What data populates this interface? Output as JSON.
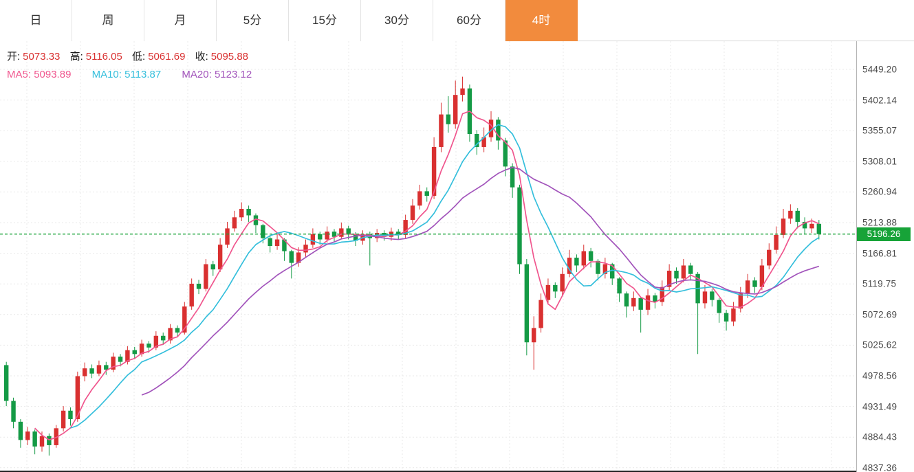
{
  "tabs": {
    "accent_color": "#f28b3d",
    "items": [
      {
        "label": "日",
        "active": false
      },
      {
        "label": "周",
        "active": false
      },
      {
        "label": "月",
        "active": false
      },
      {
        "label": "5分",
        "active": false
      },
      {
        "label": "15分",
        "active": false
      },
      {
        "label": "30分",
        "active": false
      },
      {
        "label": "60分",
        "active": false
      },
      {
        "label": "4时",
        "active": true
      }
    ]
  },
  "legend": {
    "open_label": "开:",
    "open_value": "5073.33",
    "high_label": "高:",
    "high_value": "5116.05",
    "low_label": "低:",
    "low_value": "5061.69",
    "close_label": "收:",
    "close_value": "5095.88",
    "ma5_label": "MA5:",
    "ma5_value": "5093.89",
    "ma10_label": "MA10:",
    "ma10_value": "5113.87",
    "ma20_label": "MA20:",
    "ma20_value": "5123.12"
  },
  "colors": {
    "up": "#d93030",
    "down": "#149a45",
    "ma5": "#f0568e",
    "ma10": "#35bfdc",
    "ma20": "#a254bb",
    "price_line": "#17a338",
    "grid": "#e9e9e9",
    "bottom_border": "#222222"
  },
  "chart_data": {
    "type": "candlestick",
    "title": "4时 K线 (4-hour candlestick chart)",
    "current_price": 5196.26,
    "current_price_label": "5196.26",
    "legend_position": "top-left",
    "grid": true,
    "y_axis": {
      "top_value": 5449.2,
      "step": 47.065,
      "labels": [
        "5449.20",
        "5402.14",
        "5355.07",
        "5308.01",
        "5260.94",
        "5213.88",
        "5166.81",
        "5119.75",
        "5072.69",
        "5025.62",
        "4978.56",
        "4931.49",
        "4884.43",
        "4837.36"
      ]
    },
    "series_note": "candles are [open, high, low, close]; up candles red, down candles green (CN convention); MA5/MA10/MA20 computed from closes",
    "candles": [
      [
        4995,
        5000,
        4932,
        4940
      ],
      [
        4940,
        4945,
        4898,
        4908
      ],
      [
        4908,
        4912,
        4868,
        4880
      ],
      [
        4880,
        4900,
        4872,
        4893
      ],
      [
        4893,
        4896,
        4858,
        4870
      ],
      [
        4870,
        4893,
        4862,
        4886
      ],
      [
        4886,
        4890,
        4856,
        4872
      ],
      [
        4872,
        4903,
        4868,
        4898
      ],
      [
        4898,
        4932,
        4893,
        4925
      ],
      [
        4925,
        4930,
        4902,
        4912
      ],
      [
        4912,
        4985,
        4908,
        4978
      ],
      [
        4978,
        4999,
        4970,
        4990
      ],
      [
        4990,
        4996,
        4975,
        4982
      ],
      [
        4982,
        5002,
        4978,
        4995
      ],
      [
        4995,
        5000,
        4980,
        4988
      ],
      [
        4988,
        5014,
        4984,
        5008
      ],
      [
        5008,
        5012,
        4993,
        5000
      ],
      [
        5000,
        5024,
        4996,
        5018
      ],
      [
        5018,
        5023,
        5004,
        5012
      ],
      [
        5012,
        5034,
        5008,
        5028
      ],
      [
        5028,
        5032,
        5014,
        5022
      ],
      [
        5022,
        5047,
        5018,
        5040
      ],
      [
        5040,
        5045,
        5026,
        5033
      ],
      [
        5033,
        5058,
        5028,
        5052
      ],
      [
        5052,
        5056,
        5038,
        5045
      ],
      [
        5045,
        5092,
        5042,
        5085
      ],
      [
        5085,
        5128,
        5080,
        5120
      ],
      [
        5120,
        5126,
        5104,
        5112
      ],
      [
        5112,
        5158,
        5108,
        5150
      ],
      [
        5150,
        5155,
        5132,
        5142
      ],
      [
        5142,
        5190,
        5138,
        5180
      ],
      [
        5180,
        5215,
        5175,
        5205
      ],
      [
        5205,
        5232,
        5200,
        5222
      ],
      [
        5222,
        5245,
        5216,
        5235
      ],
      [
        5235,
        5240,
        5215,
        5225
      ],
      [
        5225,
        5228,
        5198,
        5210
      ],
      [
        5210,
        5212,
        5182,
        5190
      ],
      [
        5190,
        5195,
        5168,
        5178
      ],
      [
        5178,
        5196,
        5172,
        5188
      ],
      [
        5188,
        5190,
        5155,
        5170
      ],
      [
        5170,
        5172,
        5128,
        5152
      ],
      [
        5152,
        5176,
        5146,
        5168
      ],
      [
        5168,
        5188,
        5160,
        5180
      ],
      [
        5180,
        5205,
        5175,
        5196
      ],
      [
        5196,
        5200,
        5180,
        5188
      ],
      [
        5188,
        5208,
        5183,
        5200
      ],
      [
        5200,
        5204,
        5184,
        5192
      ],
      [
        5192,
        5214,
        5188,
        5205
      ],
      [
        5205,
        5209,
        5188,
        5196
      ],
      [
        5196,
        5199,
        5178,
        5186
      ],
      [
        5186,
        5202,
        5180,
        5196
      ],
      [
        5196,
        5200,
        5148,
        5190
      ],
      [
        5190,
        5204,
        5184,
        5198
      ],
      [
        5198,
        5202,
        5186,
        5192
      ],
      [
        5192,
        5206,
        5186,
        5200
      ],
      [
        5200,
        5204,
        5188,
        5195
      ],
      [
        5195,
        5226,
        5190,
        5218
      ],
      [
        5218,
        5250,
        5212,
        5240
      ],
      [
        5240,
        5272,
        5234,
        5262
      ],
      [
        5262,
        5268,
        5246,
        5255
      ],
      [
        5255,
        5345,
        5250,
        5330
      ],
      [
        5330,
        5398,
        5322,
        5380
      ],
      [
        5380,
        5408,
        5352,
        5365
      ],
      [
        5365,
        5432,
        5358,
        5410
      ],
      [
        5410,
        5438,
        5400,
        5420
      ],
      [
        5420,
        5426,
        5338,
        5350
      ],
      [
        5350,
        5356,
        5318,
        5330
      ],
      [
        5330,
        5360,
        5322,
        5345
      ],
      [
        5345,
        5385,
        5338,
        5372
      ],
      [
        5372,
        5376,
        5326,
        5340
      ],
      [
        5340,
        5344,
        5285,
        5300
      ],
      [
        5300,
        5305,
        5252,
        5268
      ],
      [
        5268,
        5272,
        5135,
        5150
      ],
      [
        5150,
        5158,
        5010,
        5030
      ],
      [
        5030,
        5070,
        4988,
        5052
      ],
      [
        5052,
        5105,
        5045,
        5095
      ],
      [
        5095,
        5128,
        5088,
        5118
      ],
      [
        5118,
        5122,
        5098,
        5108
      ],
      [
        5108,
        5145,
        5102,
        5135
      ],
      [
        5135,
        5172,
        5130,
        5160
      ],
      [
        5160,
        5165,
        5138,
        5148
      ],
      [
        5148,
        5180,
        5142,
        5170
      ],
      [
        5170,
        5175,
        5145,
        5155
      ],
      [
        5155,
        5158,
        5125,
        5135
      ],
      [
        5135,
        5160,
        5128,
        5150
      ],
      [
        5150,
        5152,
        5118,
        5128
      ],
      [
        5128,
        5130,
        5092,
        5105
      ],
      [
        5105,
        5108,
        5068,
        5085
      ],
      [
        5085,
        5108,
        5078,
        5098
      ],
      [
        5098,
        5100,
        5045,
        5080
      ],
      [
        5080,
        5112,
        5072,
        5102
      ],
      [
        5102,
        5106,
        5082,
        5092
      ],
      [
        5092,
        5125,
        5086,
        5115
      ],
      [
        5115,
        5150,
        5110,
        5140
      ],
      [
        5140,
        5145,
        5120,
        5128
      ],
      [
        5128,
        5158,
        5122,
        5148
      ],
      [
        5148,
        5152,
        5125,
        5135
      ],
      [
        5135,
        5138,
        5012,
        5090
      ],
      [
        5090,
        5118,
        5082,
        5108
      ],
      [
        5108,
        5112,
        5085,
        5095
      ],
      [
        5095,
        5098,
        5060,
        5075
      ],
      [
        5075,
        5080,
        5048,
        5062
      ],
      [
        5062,
        5092,
        5055,
        5082
      ],
      [
        5082,
        5115,
        5076,
        5105
      ],
      [
        5105,
        5135,
        5098,
        5125
      ],
      [
        5125,
        5130,
        5106,
        5115
      ],
      [
        5115,
        5158,
        5110,
        5148
      ],
      [
        5148,
        5182,
        5142,
        5172
      ],
      [
        5172,
        5208,
        5166,
        5195
      ],
      [
        5195,
        5235,
        5190,
        5220
      ],
      [
        5220,
        5242,
        5212,
        5232
      ],
      [
        5232,
        5236,
        5205,
        5215
      ],
      [
        5215,
        5222,
        5196,
        5205
      ],
      [
        5205,
        5220,
        5198,
        5212
      ],
      [
        5212,
        5218,
        5188,
        5196.26
      ]
    ]
  }
}
